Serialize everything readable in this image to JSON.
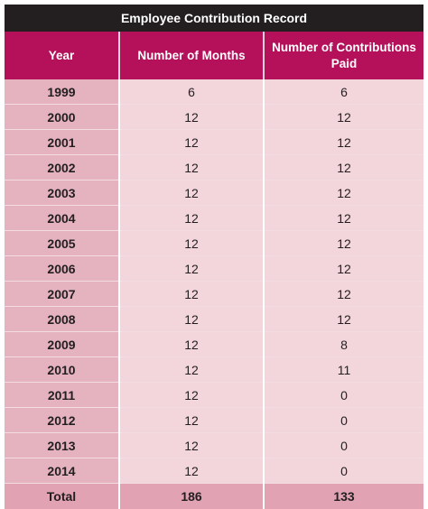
{
  "table": {
    "title": "Employee Contribution Record",
    "headers": [
      "Year",
      "Number of Months",
      "Number of Contributions Paid"
    ],
    "rows": [
      {
        "year": "1999",
        "months": "6",
        "paid": "6"
      },
      {
        "year": "2000",
        "months": "12",
        "paid": "12"
      },
      {
        "year": "2001",
        "months": "12",
        "paid": "12"
      },
      {
        "year": "2002",
        "months": "12",
        "paid": "12"
      },
      {
        "year": "2003",
        "months": "12",
        "paid": "12"
      },
      {
        "year": "2004",
        "months": "12",
        "paid": "12"
      },
      {
        "year": "2005",
        "months": "12",
        "paid": "12"
      },
      {
        "year": "2006",
        "months": "12",
        "paid": "12"
      },
      {
        "year": "2007",
        "months": "12",
        "paid": "12"
      },
      {
        "year": "2008",
        "months": "12",
        "paid": "12"
      },
      {
        "year": "2009",
        "months": "12",
        "paid": "8"
      },
      {
        "year": "2010",
        "months": "12",
        "paid": "11"
      },
      {
        "year": "2011",
        "months": "12",
        "paid": "0"
      },
      {
        "year": "2012",
        "months": "12",
        "paid": "0"
      },
      {
        "year": "2013",
        "months": "12",
        "paid": "0"
      },
      {
        "year": "2014",
        "months": "12",
        "paid": "0"
      }
    ],
    "total": {
      "label": "Total",
      "months": "186",
      "paid": "133"
    }
  },
  "colors": {
    "title_bg": "#231f20",
    "header_bg": "#b5105a",
    "year_cell_bg": "#e5b2c0",
    "value_cell_bg": "#f3d5dc",
    "total_row_bg": "#e1a2b4"
  }
}
